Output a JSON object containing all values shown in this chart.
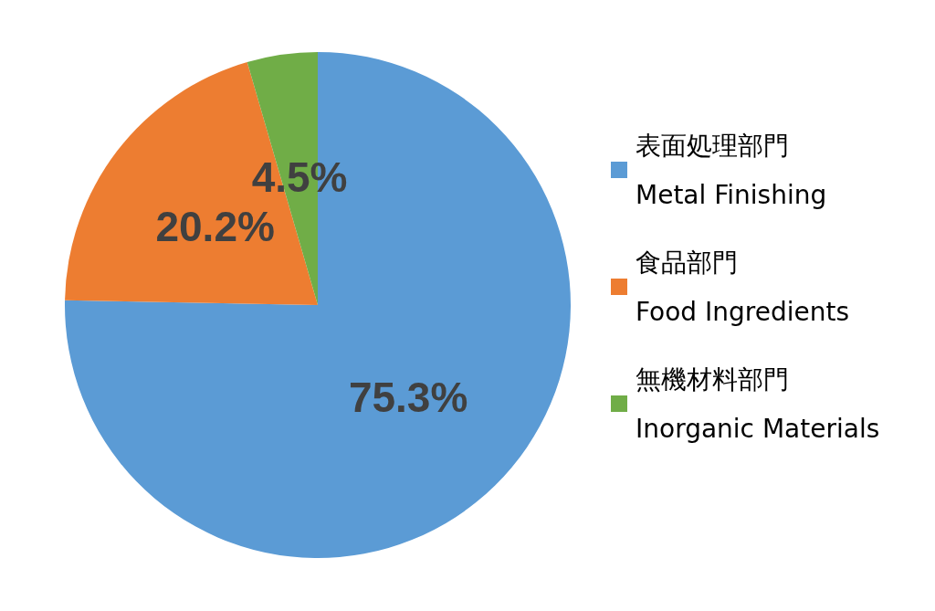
{
  "chart_data": {
    "type": "pie",
    "categories": [
      "表面処理部門\nMetal Finishing",
      "食品部門\nFood Ingredients",
      "無機材料部門\nInorganic Materials"
    ],
    "values": [
      75.3,
      20.2,
      4.5
    ],
    "colors": [
      "#5b9bd5",
      "#ed7d31",
      "#70ad47"
    ],
    "value_labels": [
      "75.3%",
      "20.2%",
      "4.5%"
    ],
    "legend": "right"
  }
}
